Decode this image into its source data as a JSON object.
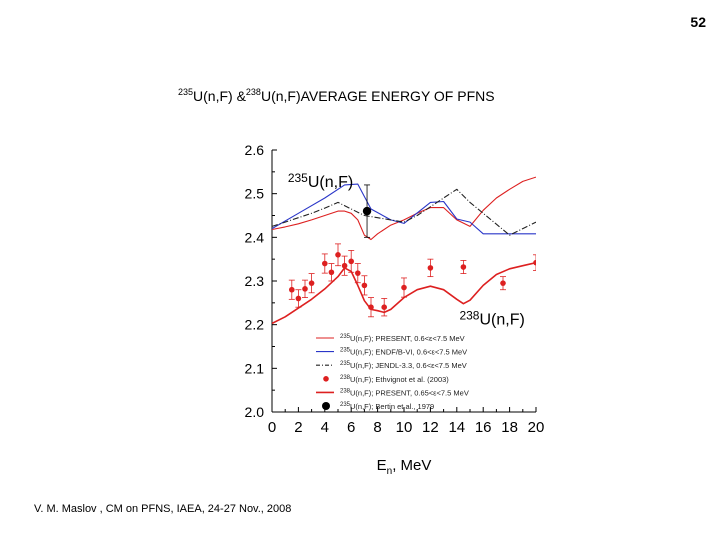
{
  "page_number": "52",
  "title": {
    "sup1": "235",
    "part1": "U(n,F) &",
    "sup2": "238",
    "part2": "U(n,F)AVERAGE ENERGY OF PFNS"
  },
  "footer": "V. M. Maslov ,   CM on PFNS, IAEA, 24-27 Nov., 2008",
  "chart_data": {
    "type": "line",
    "title": "235U(n,F) & 238U(n,F) average energy of PFNS",
    "xlabel_main": "E",
    "xlabel_sub": "n",
    "xlabel_unit": ", MeV",
    "ylabel": "",
    "xlim": [
      0,
      20
    ],
    "ylim": [
      2.0,
      2.6
    ],
    "x_ticks": [
      "0",
      "2",
      "4",
      "6",
      "8",
      "10",
      "12",
      "14",
      "16",
      "18",
      "20"
    ],
    "y_ticks": [
      "2.6",
      "2.5",
      "2.4",
      "2.3",
      "2.2",
      "2.1",
      "2.0"
    ],
    "annotations": [
      {
        "sup": "235",
        "text": "U(n,F)",
        "x": 1.2,
        "y": 2.515
      },
      {
        "sup": "238",
        "text": "U(n,F)",
        "x": 14.2,
        "y": 2.2
      }
    ],
    "colors": {
      "red": "#dd2020",
      "blue": "#2a36c8",
      "black": "#222222",
      "axis": "#000000"
    },
    "series": [
      {
        "name": "235U(n,F); PRESENT, 0.6<ε<7.5 MeV",
        "color": "#dd2020",
        "style": "thin",
        "x": [
          0,
          1,
          2,
          3,
          4,
          5,
          5.5,
          6,
          6.5,
          7,
          7.5,
          8,
          9,
          10,
          11,
          12,
          13,
          14,
          15,
          16,
          17,
          18,
          19,
          20
        ],
        "y": [
          2.418,
          2.424,
          2.431,
          2.44,
          2.45,
          2.46,
          2.46,
          2.455,
          2.44,
          2.405,
          2.395,
          2.408,
          2.428,
          2.44,
          2.455,
          2.468,
          2.468,
          2.44,
          2.425,
          2.462,
          2.49,
          2.51,
          2.528,
          2.538
        ]
      },
      {
        "name": "235U(n,F); ENDF/B-VI, 0.6<ε<7.5 MeV",
        "color": "#2a36c8",
        "style": "thin",
        "x": [
          0,
          2,
          4,
          5.5,
          6.5,
          7.5,
          9,
          10,
          12,
          13,
          14,
          15,
          16,
          18,
          20
        ],
        "y": [
          2.42,
          2.455,
          2.49,
          2.52,
          2.522,
          2.465,
          2.44,
          2.432,
          2.48,
          2.482,
          2.442,
          2.435,
          2.408,
          2.408,
          2.408
        ]
      },
      {
        "name": "235U(n,F); JENDL-3.3, 0.6<ε<7.5 MeV",
        "color": "#222222",
        "style": "dashdot",
        "x": [
          0,
          1,
          2,
          3,
          4,
          5,
          6,
          7,
          8,
          9,
          10,
          11,
          12,
          13,
          14,
          15,
          16,
          17,
          18,
          19,
          20
        ],
        "y": [
          2.425,
          2.435,
          2.445,
          2.455,
          2.467,
          2.48,
          2.465,
          2.45,
          2.445,
          2.44,
          2.435,
          2.45,
          2.47,
          2.49,
          2.51,
          2.48,
          2.455,
          2.43,
          2.405,
          2.42,
          2.435
        ]
      },
      {
        "name": "238U(n,F); PRESENT, 0.65<ε<7.5 MeV",
        "color": "#dd2020",
        "style": "thick",
        "x": [
          0,
          1,
          2,
          3,
          4,
          5,
          5.5,
          6,
          6.5,
          7,
          7.5,
          8,
          8.5,
          9,
          10,
          11,
          12,
          13,
          14,
          14.5,
          15,
          16,
          17,
          18,
          19,
          20
        ],
        "y": [
          2.203,
          2.218,
          2.238,
          2.258,
          2.282,
          2.31,
          2.33,
          2.322,
          2.29,
          2.255,
          2.235,
          2.232,
          2.228,
          2.235,
          2.262,
          2.28,
          2.288,
          2.28,
          2.258,
          2.248,
          2.256,
          2.29,
          2.315,
          2.328,
          2.335,
          2.342
        ]
      },
      {
        "name": "238U(n,F); Ethvignot et al. (2003)",
        "color": "#dd2020",
        "style": "points",
        "x": [
          1.5,
          2,
          2.5,
          3,
          4,
          4.5,
          5,
          5.5,
          6,
          6.5,
          7,
          7.5,
          8.5,
          10,
          12,
          14.5,
          17.5,
          20
        ],
        "y": [
          2.28,
          2.26,
          2.282,
          2.295,
          2.34,
          2.32,
          2.36,
          2.335,
          2.345,
          2.318,
          2.29,
          2.24,
          2.24,
          2.285,
          2.33,
          2.332,
          2.295,
          2.342
        ],
        "yerr": [
          0.022,
          0.02,
          0.02,
          0.022,
          0.022,
          0.02,
          0.025,
          0.022,
          0.025,
          0.022,
          0.022,
          0.022,
          0.02,
          0.022,
          0.02,
          0.015,
          0.015,
          0.018
        ]
      },
      {
        "name": "235U(n,F); Bertin et al., 1979",
        "color": "#000000",
        "style": "bigpoint",
        "x": [
          7.2
        ],
        "y": [
          2.46
        ],
        "yerr": [
          0.06
        ]
      }
    ],
    "legend": [
      {
        "sup": "235",
        "text": "U(n,F); PRESENT, 0.6<ε<7.5 MeV",
        "marker": "line-red-thin"
      },
      {
        "sup": "235",
        "text": "U(n,F); ENDF/B-VI, 0.6<ε<7.5 MeV",
        "marker": "line-blue"
      },
      {
        "sup": "235",
        "text": "U(n,F); JENDL-3.3, 0.6<ε<7.5 MeV",
        "marker": "line-black-dashdot"
      },
      {
        "sup": "238",
        "text": "U(n,F); Ethvignot et al. (2003)",
        "marker": "dot-red"
      },
      {
        "sup": "238",
        "text": "U(n,F); PRESENT, 0.65<ε<7.5 MeV",
        "marker": "line-red-thick"
      },
      {
        "sup": "235",
        "text": "U(n,F); Bertin et al., 1979",
        "marker": "dot-black"
      }
    ],
    "legend_position": "bottom-right inside plot"
  }
}
